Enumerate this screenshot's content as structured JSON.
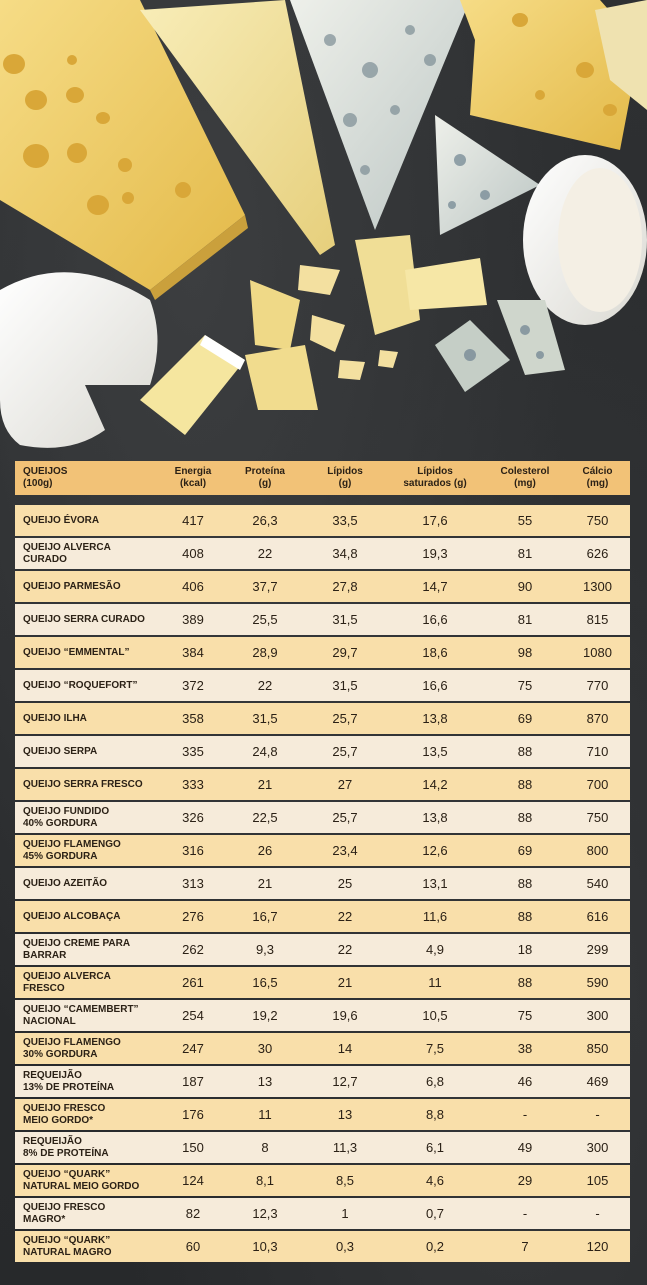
{
  "table": {
    "headers": [
      "QUEIJOS\n(100g)",
      "Energia\n(kcal)",
      "Proteína\n(g)",
      "Lípidos\n(g)",
      "Lípidos\nsaturados (g)",
      "Colesterol\n(mg)",
      "Cálcio\n(mg)"
    ],
    "rows": [
      {
        "name": "QUEIJO ÉVORA",
        "energia": "417",
        "proteina": "26,3",
        "lipidos": "33,5",
        "saturados": "17,6",
        "colesterol": "55",
        "calcio": "750"
      },
      {
        "name": "QUEIJO ALVERCA\nCURADO",
        "energia": "408",
        "proteina": "22",
        "lipidos": "34,8",
        "saturados": "19,3",
        "colesterol": "81",
        "calcio": "626"
      },
      {
        "name": "QUEIJO PARMESÃO",
        "energia": "406",
        "proteina": "37,7",
        "lipidos": "27,8",
        "saturados": "14,7",
        "colesterol": "90",
        "calcio": "1300"
      },
      {
        "name": "QUEIJO SERRA CURADO",
        "energia": "389",
        "proteina": "25,5",
        "lipidos": "31,5",
        "saturados": "16,6",
        "colesterol": "81",
        "calcio": "815"
      },
      {
        "name": "QUEIJO “EMMENTAL”",
        "energia": "384",
        "proteina": "28,9",
        "lipidos": "29,7",
        "saturados": "18,6",
        "colesterol": "98",
        "calcio": "1080"
      },
      {
        "name": "QUEIJO “ROQUEFORT”",
        "energia": "372",
        "proteina": "22",
        "lipidos": "31,5",
        "saturados": "16,6",
        "colesterol": "75",
        "calcio": "770"
      },
      {
        "name": "QUEIJO ILHA",
        "energia": "358",
        "proteina": "31,5",
        "lipidos": "25,7",
        "saturados": "13,8",
        "colesterol": "69",
        "calcio": "870"
      },
      {
        "name": "QUEIJO SERPA",
        "energia": "335",
        "proteina": "24,8",
        "lipidos": "25,7",
        "saturados": "13,5",
        "colesterol": "88",
        "calcio": "710"
      },
      {
        "name": "QUEIJO SERRA FRESCO",
        "energia": "333",
        "proteina": "21",
        "lipidos": "27",
        "saturados": "14,2",
        "colesterol": "88",
        "calcio": "700"
      },
      {
        "name": "QUEIJO FUNDIDO\n40% GORDURA",
        "energia": "326",
        "proteina": "22,5",
        "lipidos": "25,7",
        "saturados": "13,8",
        "colesterol": "88",
        "calcio": "750"
      },
      {
        "name": "QUEIJO FLAMENGO\n45% GORDURA",
        "energia": "316",
        "proteina": "26",
        "lipidos": "23,4",
        "saturados": "12,6",
        "colesterol": "69",
        "calcio": "800"
      },
      {
        "name": "QUEIJO AZEITÃO",
        "energia": "313",
        "proteina": "21",
        "lipidos": "25",
        "saturados": "13,1",
        "colesterol": "88",
        "calcio": "540"
      },
      {
        "name": "QUEIJO ALCOBAÇA",
        "energia": "276",
        "proteina": "16,7",
        "lipidos": "22",
        "saturados": "11,6",
        "colesterol": "88",
        "calcio": "616"
      },
      {
        "name": "QUEIJO CREME PARA\nBARRAR",
        "energia": "262",
        "proteina": "9,3",
        "lipidos": "22",
        "saturados": "4,9",
        "colesterol": "18",
        "calcio": "299"
      },
      {
        "name": "QUEIJO ALVERCA\nFRESCO",
        "energia": "261",
        "proteina": "16,5",
        "lipidos": "21",
        "saturados": "11",
        "colesterol": "88",
        "calcio": "590"
      },
      {
        "name": "QUEIJO “CAMEMBERT”\nNACIONAL",
        "energia": "254",
        "proteina": "19,2",
        "lipidos": "19,6",
        "saturados": "10,5",
        "colesterol": "75",
        "calcio": "300"
      },
      {
        "name": "QUEIJO FLAMENGO\n30% GORDURA",
        "energia": "247",
        "proteina": "30",
        "lipidos": "14",
        "saturados": "7,5",
        "colesterol": "38",
        "calcio": "850"
      },
      {
        "name": "REQUEIJÃO\n13% DE PROTEÍNA",
        "energia": "187",
        "proteina": "13",
        "lipidos": "12,7",
        "saturados": "6,8",
        "colesterol": "46",
        "calcio": "469"
      },
      {
        "name": "QUEIJO FRESCO\nMEIO GORDO*",
        "energia": "176",
        "proteina": "11",
        "lipidos": "13",
        "saturados": "8,8",
        "colesterol": "-",
        "calcio": "-"
      },
      {
        "name": "REQUEIJÃO\n8% DE PROTEÍNA",
        "energia": "150",
        "proteina": "8",
        "lipidos": "11,3",
        "saturados": "6,1",
        "colesterol": "49",
        "calcio": "300"
      },
      {
        "name": "QUEIJO “QUARK”\nNATURAL MEIO GORDO",
        "energia": "124",
        "proteina": "8,1",
        "lipidos": "8,5",
        "saturados": "4,6",
        "colesterol": "29",
        "calcio": "105"
      },
      {
        "name": "QUEIJO FRESCO\nMAGRO*",
        "energia": "82",
        "proteina": "12,3",
        "lipidos": "1",
        "saturados": "0,7",
        "colesterol": "-",
        "calcio": "-"
      },
      {
        "name": "QUEIJO “QUARK”\nNATURAL MAGRO",
        "energia": "60",
        "proteina": "10,3",
        "lipidos": "0,3",
        "saturados": "0,2",
        "colesterol": "7",
        "calcio": "120"
      }
    ]
  }
}
